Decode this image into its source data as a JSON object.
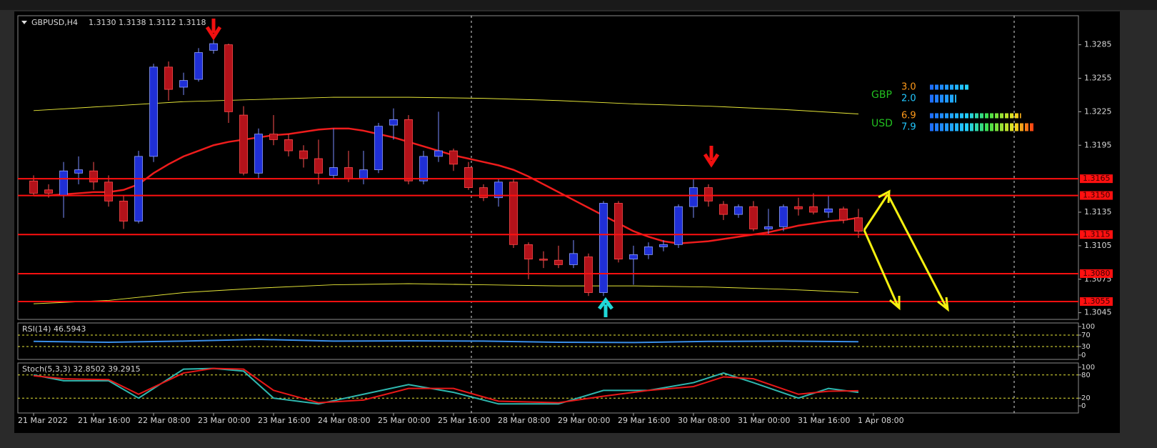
{
  "chart_data": [
    {
      "type": "candlestick",
      "header": {
        "symbol": "GBPUSD,H4",
        "quote": "1.3130 1.3138 1.3112 1.3118"
      },
      "xlim": [
        -1.05,
        69.67
      ],
      "ylim": [
        1.3039,
        1.3311
      ],
      "yticks": [
        1.3285,
        1.3255,
        1.3225,
        1.3195,
        1.3135,
        1.3105,
        1.3075,
        1.3045
      ],
      "xticks": [
        {
          "value": 0,
          "label": "21 Mar 2022"
        },
        {
          "value": 4,
          "label": "21 Mar 16:00"
        },
        {
          "value": 8,
          "label": "22 Mar 08:00"
        },
        {
          "value": 12,
          "label": "23 Mar 00:00"
        },
        {
          "value": 16,
          "label": "23 Mar 16:00"
        },
        {
          "value": 20,
          "label": "24 Mar 08:00"
        },
        {
          "value": 24,
          "label": "25 Mar 00:00"
        },
        {
          "value": 28,
          "label": "25 Mar 16:00"
        },
        {
          "value": 32,
          "label": "28 Mar 08:00"
        },
        {
          "value": 36,
          "label": "29 Mar 00:00"
        },
        {
          "value": 40,
          "label": "29 Mar 16:00"
        },
        {
          "value": 44,
          "label": "30 Mar 08:00"
        },
        {
          "value": 48,
          "label": "31 Mar 00:00"
        },
        {
          "value": 52,
          "label": "31 Mar 16:00"
        },
        {
          "value": 56,
          "label": "1 Apr 08:00"
        }
      ],
      "open": [
        1.3163,
        1.3155,
        1.315,
        1.317,
        1.3172,
        1.3162,
        1.3145,
        1.3127,
        1.3185,
        1.3265,
        1.3247,
        1.3254,
        1.328,
        1.3285,
        1.3222,
        1.317,
        1.3205,
        1.32,
        1.319,
        1.3183,
        1.3168,
        1.3175,
        1.3165,
        1.3173,
        1.3213,
        1.3218,
        1.3163,
        1.3185,
        1.319,
        1.3175,
        1.3157,
        1.3148,
        1.3162,
        1.3106,
        1.3093,
        1.3092,
        1.3088,
        1.3095,
        1.3063,
        1.3143,
        1.3093,
        1.3097,
        1.3104,
        1.3106,
        1.314,
        1.3157,
        1.3142,
        1.3133,
        1.314,
        1.312,
        1.3122,
        1.314,
        1.314,
        1.3135,
        1.3138,
        1.313
      ],
      "high": [
        1.3168,
        1.316,
        1.318,
        1.3185,
        1.318,
        1.3168,
        1.315,
        1.319,
        1.3268,
        1.327,
        1.326,
        1.3282,
        1.329,
        1.3286,
        1.323,
        1.321,
        1.3222,
        1.3205,
        1.3195,
        1.32,
        1.321,
        1.319,
        1.319,
        1.3215,
        1.3228,
        1.3222,
        1.319,
        1.3225,
        1.3192,
        1.318,
        1.316,
        1.3165,
        1.3165,
        1.3108,
        1.31,
        1.3105,
        1.311,
        1.3098,
        1.3145,
        1.3145,
        1.3105,
        1.3108,
        1.311,
        1.3142,
        1.3165,
        1.316,
        1.3145,
        1.3142,
        1.3145,
        1.3138,
        1.3142,
        1.3148,
        1.3152,
        1.315,
        1.314,
        1.3138
      ],
      "low": [
        1.315,
        1.3148,
        1.313,
        1.316,
        1.3155,
        1.314,
        1.312,
        1.3125,
        1.318,
        1.3235,
        1.324,
        1.3252,
        1.3277,
        1.3215,
        1.3168,
        1.3165,
        1.3195,
        1.3185,
        1.3175,
        1.316,
        1.3165,
        1.3162,
        1.316,
        1.317,
        1.32,
        1.316,
        1.316,
        1.318,
        1.3172,
        1.3155,
        1.3145,
        1.314,
        1.3103,
        1.3075,
        1.3085,
        1.3085,
        1.3085,
        1.306,
        1.306,
        1.309,
        1.307,
        1.3093,
        1.31,
        1.3103,
        1.313,
        1.314,
        1.3128,
        1.313,
        1.3118,
        1.3115,
        1.3118,
        1.3132,
        1.3133,
        1.313,
        1.3125,
        1.3112
      ],
      "close": [
        1.3152,
        1.3152,
        1.3172,
        1.3173,
        1.3162,
        1.3145,
        1.3127,
        1.3185,
        1.3265,
        1.3245,
        1.3253,
        1.3278,
        1.3286,
        1.3225,
        1.317,
        1.3205,
        1.32,
        1.319,
        1.3183,
        1.317,
        1.3175,
        1.3165,
        1.3173,
        1.3212,
        1.3218,
        1.3163,
        1.3185,
        1.319,
        1.3178,
        1.3157,
        1.3148,
        1.3162,
        1.3106,
        1.3093,
        1.3092,
        1.3088,
        1.3098,
        1.3063,
        1.3143,
        1.3093,
        1.3097,
        1.3104,
        1.3106,
        1.314,
        1.3157,
        1.3145,
        1.3133,
        1.314,
        1.312,
        1.3122,
        1.314,
        1.3138,
        1.3135,
        1.3138,
        1.3128,
        1.3118
      ],
      "up_color": "#1f2fd6",
      "down_color": "#b3121a",
      "overlays": [
        {
          "color": "#e8e838",
          "width": 1,
          "x": [
            0,
            5,
            10,
            15,
            20,
            25,
            30,
            35,
            40,
            45,
            50,
            55
          ],
          "values": [
            1.3226,
            1.323,
            1.3234,
            1.3236,
            1.3238,
            1.3238,
            1.3237,
            1.3235,
            1.3232,
            1.323,
            1.3227,
            1.3223
          ]
        },
        {
          "color": "#e8e838",
          "width": 1,
          "x": [
            0,
            5,
            10,
            15,
            20,
            25,
            30,
            35,
            40,
            45,
            50,
            55
          ],
          "values": [
            1.3053,
            1.3056,
            1.3063,
            1.3067,
            1.307,
            1.3071,
            1.307,
            1.3069,
            1.3069,
            1.3068,
            1.3066,
            1.3063
          ]
        },
        {
          "color": "#ee1c1c",
          "width": 2.5,
          "values": [
            1.315,
            1.315,
            1.3151,
            1.3152,
            1.3153,
            1.3153,
            1.3155,
            1.316,
            1.317,
            1.3178,
            1.3185,
            1.319,
            1.3195,
            1.3198,
            1.32,
            1.3202,
            1.3204,
            1.3205,
            1.3207,
            1.3209,
            1.321,
            1.321,
            1.3208,
            1.3205,
            1.3202,
            1.3198,
            1.3194,
            1.319,
            1.3186,
            1.3183,
            1.318,
            1.3177,
            1.3173,
            1.3167,
            1.316,
            1.3153,
            1.3146,
            1.3139,
            1.3132,
            1.3125,
            1.3118,
            1.3113,
            1.3109,
            1.3107,
            1.3108,
            1.3109,
            1.3111,
            1.3113,
            1.3115,
            1.3117,
            1.312,
            1.3123,
            1.3125,
            1.3127,
            1.3128,
            1.313
          ]
        }
      ],
      "levels": [
        {
          "value": 1.3165,
          "label": "1.3165"
        },
        {
          "value": 1.315,
          "label": "1.3150"
        },
        {
          "value": 1.3115,
          "label": "1.3115"
        },
        {
          "value": 1.308,
          "label": "1.3080"
        },
        {
          "value": 1.3055,
          "label": "1.3055"
        }
      ],
      "level_color": "#ff1010",
      "strength": [
        {
          "label": "GBP",
          "values": [
            3,
            2
          ],
          "value_labels": [
            "3.0",
            "2.0"
          ]
        },
        {
          "label": "USD",
          "values": [
            6.9,
            7.9
          ],
          "value_labels": [
            "6.9",
            "7.9"
          ]
        }
      ],
      "strength_colors": [
        "#ff9a1a",
        "#22c8ff"
      ],
      "strength_label_color": "#22c020"
    },
    {
      "type": "line",
      "title": "RSI(14) 46.5943",
      "x": [
        0,
        5,
        10,
        15,
        20,
        25,
        30,
        35,
        40,
        45,
        50,
        55
      ],
      "ylim": [
        -15,
        112.5
      ],
      "yticks": [
        100,
        70,
        30,
        0
      ],
      "levels": [
        70,
        30
      ],
      "series": [
        {
          "color": "#3a8ee8",
          "values": [
            48,
            45,
            49,
            55,
            49,
            50,
            49,
            45,
            44,
            48,
            49,
            47
          ]
        }
      ]
    },
    {
      "type": "line",
      "title": "Stoch(5,3,3) 32.8502 39.2915",
      "x": [
        0,
        2,
        5,
        7,
        10,
        12,
        14,
        16,
        19,
        22,
        25,
        28,
        31,
        35,
        38,
        41,
        44,
        46,
        48,
        51,
        53,
        55
      ],
      "ylim": [
        -18.5,
        111
      ],
      "yticks": [
        100,
        80,
        20,
        0
      ],
      "levels": [
        80,
        20
      ],
      "series": [
        {
          "color": "#2fb8b0",
          "values": [
            80,
            65,
            65,
            20,
            95,
            97,
            90,
            20,
            5,
            30,
            55,
            35,
            5,
            5,
            40,
            40,
            60,
            85,
            60,
            20,
            45,
            35
          ]
        },
        {
          "color": "#e81818",
          "values": [
            78,
            70,
            68,
            30,
            85,
            97,
            95,
            40,
            8,
            15,
            45,
            45,
            12,
            8,
            25,
            40,
            50,
            75,
            70,
            30,
            38,
            39
          ]
        }
      ]
    }
  ]
}
